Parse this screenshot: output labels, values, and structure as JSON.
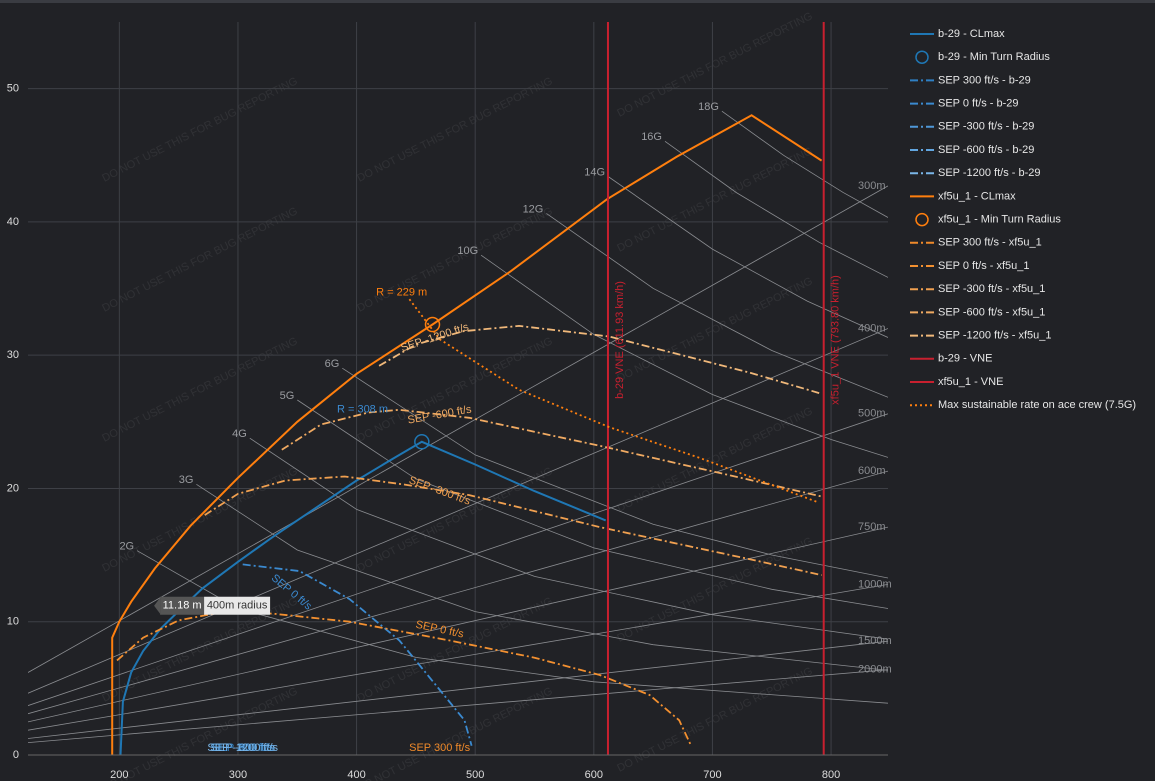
{
  "chart_data": {
    "type": "line",
    "xlim": [
      123,
      848
    ],
    "ylim": [
      0,
      55
    ],
    "xticks": [
      200,
      300,
      400,
      500,
      600,
      700,
      800
    ],
    "yticks": [
      0,
      10,
      20,
      30,
      40,
      50
    ],
    "grid": true,
    "watermark": "DO NOT USE THIS FOR BUG REPORTING",
    "series": [
      {
        "name": "b-29 - CLmax",
        "color": "#1f77b4",
        "dash": "solid",
        "x": [
          201,
          203,
          210,
          220,
          235,
          250,
          270,
          300,
          330,
          360,
          400,
          430,
          455,
          500,
          550,
          610
        ],
        "y": [
          0,
          4,
          6.2,
          7.8,
          9.5,
          10.8,
          12.5,
          14.5,
          16.4,
          18.2,
          20.6,
          22.2,
          23.5,
          21.8,
          19.8,
          17.6
        ]
      },
      {
        "name": "b-29 - Min Turn Radius",
        "color": "#1f77b4",
        "mode": "markers",
        "x": [
          455
        ],
        "y": [
          23.5
        ]
      },
      {
        "name": "SEP 300 ft/s - b-29",
        "color": "#2f80c4",
        "dash": "dashdot"
      },
      {
        "name": "SEP 0 ft/s - b-29",
        "color": "#3b8ad0",
        "dash": "dashdot",
        "x": [
          304,
          352,
          394,
          436,
          470,
          491,
          497
        ],
        "y": [
          14.3,
          13.8,
          11.7,
          8.6,
          4.9,
          2.6,
          0.7
        ]
      },
      {
        "name": "SEP -300 ft/s - b-29",
        "color": "#4f98d8",
        "dash": "dashdot"
      },
      {
        "name": "SEP -600 ft/s - b-29",
        "color": "#62a6e0",
        "dash": "dashdot"
      },
      {
        "name": "SEP -1200 ft/s - b-29",
        "color": "#7ab6e8",
        "dash": "dashdot"
      },
      {
        "name": "xf5u_1 - CLmax",
        "color": "#ff7f0e",
        "dash": "solid",
        "x": [
          194,
          194,
          200,
          210,
          230,
          260,
          300,
          350,
          400,
          464,
          530,
          611,
          670,
          733,
          792
        ],
        "y": [
          0,
          8.8,
          10.0,
          11.5,
          14.0,
          17.2,
          20.8,
          25.0,
          28.6,
          32.3,
          36.3,
          41.7,
          44.9,
          48.0,
          44.6
        ]
      },
      {
        "name": "xf5u_1 - Min Turn Radius",
        "color": "#ff7f0e",
        "mode": "markers",
        "x": [
          464
        ],
        "y": [
          32.3
        ]
      },
      {
        "name": "SEP 300 ft/s - xf5u_1",
        "color": "#f08a2a",
        "dash": "dashdot"
      },
      {
        "name": "SEP 0 ft/s - xf5u_1",
        "color": "#f39030",
        "dash": "dashdot",
        "x": [
          198,
          220,
          250,
          291,
          330,
          394,
          478,
          550,
          605,
          647,
          672,
          682
        ],
        "y": [
          7.1,
          8.8,
          10.1,
          10.8,
          10.6,
          10.0,
          8.6,
          7.3,
          6.0,
          4.5,
          2.6,
          0.7
        ]
      },
      {
        "name": "SEP -300 ft/s - xf5u_1",
        "color": "#f0a050",
        "dash": "dashdot",
        "x": [
          272,
          300,
          340,
          390,
          440,
          495,
          605,
          731,
          792
        ],
        "y": [
          18.0,
          19.6,
          20.6,
          20.9,
          20.3,
          19.5,
          17.1,
          14.7,
          13.5
        ]
      },
      {
        "name": "SEP -600 ft/s - xf5u_1",
        "color": "#f0aa62",
        "dash": "dashdot",
        "x": [
          337,
          370,
          410,
          436,
          495,
          605,
          724,
          792
        ],
        "y": [
          22.9,
          24.8,
          25.7,
          25.9,
          25.3,
          23.2,
          20.8,
          19.4
        ]
      },
      {
        "name": "SEP -1200 ft/s - xf5u_1",
        "color": "#f0b87a",
        "dash": "dashdot",
        "x": [
          419,
          450,
          490,
          537,
          613,
          731,
          792
        ],
        "y": [
          29.2,
          30.8,
          31.8,
          32.2,
          31.4,
          28.7,
          27.1
        ]
      },
      {
        "name": "b-29 - VNE",
        "color": "#c8202f",
        "mode": "vline",
        "vline": 611.93,
        "label": "b-29 VNE (611.93 km/h)"
      },
      {
        "name": "xf5u_1 - VNE",
        "color": "#c8202f",
        "mode": "vline",
        "vline": 793.8,
        "label": "xf5u_1 VNE (793.80 km/h)"
      },
      {
        "name": "Max sustainable rate on ace crew (7.5G)",
        "color": "#ff7f0e",
        "dash": "dot",
        "x": [
          444.5,
          470,
          537,
          613,
          689,
          788
        ],
        "y": [
          34.2,
          31.2,
          27.4,
          24.6,
          22.3,
          19.0
        ]
      }
    ],
    "g_lines": [
      {
        "label": "2G",
        "x": [
          215,
          300,
          450,
          600,
          848
        ],
        "y": [
          15.33,
          10.99,
          7.32,
          5.49,
          3.89
        ]
      },
      {
        "label": "3G",
        "x": [
          265,
          350,
          500,
          650,
          848
        ],
        "y": [
          20.31,
          15.38,
          10.76,
          8.28,
          6.35
        ]
      },
      {
        "label": "4G",
        "x": [
          310,
          400,
          550,
          700,
          848
        ],
        "y": [
          23.77,
          18.43,
          13.4,
          10.53,
          8.69
        ]
      },
      {
        "label": "5G",
        "x": [
          350,
          450,
          600,
          750,
          848
        ],
        "y": [
          26.64,
          20.72,
          15.54,
          12.43,
          10.99
        ]
      },
      {
        "label": "6G",
        "x": [
          388,
          500,
          650,
          750,
          848
        ],
        "y": [
          29.02,
          22.52,
          17.32,
          15.01,
          13.28
        ]
      },
      {
        "label": "10G",
        "x": [
          505,
          600,
          700,
          800,
          848
        ],
        "y": [
          37.5,
          31.56,
          27.05,
          23.67,
          22.33
        ]
      },
      {
        "label": "12G",
        "x": [
          560,
          650,
          750,
          848
        ],
        "y": [
          40.64,
          35.02,
          30.35,
          26.84
        ]
      },
      {
        "label": "14G",
        "x": [
          612,
          700,
          780,
          848
        ],
        "y": [
          43.41,
          37.96,
          34.06,
          31.33
        ]
      },
      {
        "label": "16G",
        "x": [
          660,
          720,
          790,
          848
        ],
        "y": [
          46.05,
          42.21,
          38.47,
          35.84
        ]
      },
      {
        "label": "18G",
        "x": [
          708,
          760,
          810,
          848
        ],
        "y": [
          48.31,
          45.0,
          42.22,
          40.33
        ]
      }
    ],
    "radius_lines": [
      {
        "label": "300m",
        "x": [
          123,
          848
        ],
        "y": [
          6.19,
          42.7
        ]
      },
      {
        "label": "400m",
        "x": [
          123,
          848
        ],
        "y": [
          4.64,
          32.0
        ]
      },
      {
        "label": "500m",
        "x": [
          123,
          848
        ],
        "y": [
          3.71,
          25.6
        ]
      },
      {
        "label": "600m",
        "x": [
          123,
          848
        ],
        "y": [
          3.1,
          21.3
        ]
      },
      {
        "label": "750m",
        "x": [
          123,
          848
        ],
        "y": [
          2.48,
          17.1
        ]
      },
      {
        "label": "1000m",
        "x": [
          123,
          848
        ],
        "y": [
          1.86,
          12.8
        ]
      },
      {
        "label": "1500m",
        "x": [
          123,
          848
        ],
        "y": [
          1.24,
          8.54
        ]
      },
      {
        "label": "2000m",
        "x": [
          123,
          848
        ],
        "y": [
          0.93,
          6.4
        ]
      }
    ],
    "annotations": [
      {
        "text": "R = 229 m",
        "x": 438,
        "y": 34.7,
        "color": "#ff7f0e"
      },
      {
        "text": "R = 308 m",
        "x": 405,
        "y": 25.9,
        "color": "#3b8ad0"
      },
      {
        "text": "SEP -1200 ft/s",
        "x": 466,
        "y": 31.3,
        "color": "#f0b87a"
      },
      {
        "text": "SEP -600 ft/s",
        "x": 470,
        "y": 25.5,
        "color": "#f0aa62"
      },
      {
        "text": "SEP -300 ft/s",
        "x": 470,
        "y": 19.8,
        "color": "#f0a050"
      },
      {
        "text": "SEP 0 ft/s",
        "x": 470,
        "y": 9.4,
        "color": "#f39030"
      },
      {
        "text": "SEP 0 ft/s",
        "x": 345,
        "y": 12.2,
        "color": "#3b8ad0"
      },
      {
        "text": "SEP 300 ft/s",
        "x": 470,
        "y": 0.5,
        "color": "#f08a2a"
      },
      {
        "text": "SEP 300 ft/s",
        "x": 304,
        "y": 0.5,
        "color": "#2f80c4"
      },
      {
        "text": "SEP -300 ft/s",
        "x": 304,
        "y": 0.5,
        "color": "#4f98d8"
      },
      {
        "text": "SEP -600 ft/s",
        "x": 304,
        "y": 0.5,
        "color": "#62a6e0"
      },
      {
        "text": "SEP -1200 ft/s",
        "x": 304,
        "y": 0.5,
        "color": "#7ab6e8"
      }
    ],
    "hover": {
      "value": "11.18 m",
      "label": "400m radius",
      "x": 290,
      "y": 11.2
    }
  }
}
